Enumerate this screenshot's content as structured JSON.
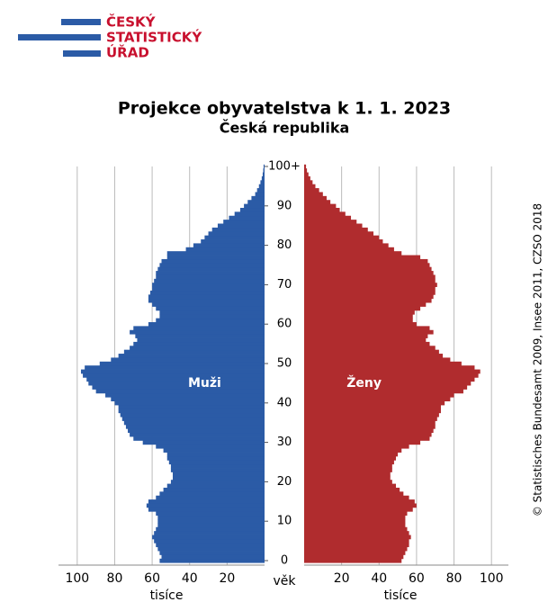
{
  "logo": {
    "lines": [
      "ČESKÝ",
      "STATISTICKÝ",
      "ÚŘAD"
    ]
  },
  "chart_data": {
    "type": "pyramid",
    "title": "Projekce obyvatelstva k 1. 1. 2023",
    "subtitle": "Česká republika",
    "x_label": "tisíce",
    "y_label": "věk",
    "note": "© Statistisches Bundesamt 2009, Insee 2011, CZSO 2018",
    "ylim": [
      0,
      100
    ],
    "yticks": [
      0,
      10,
      20,
      30,
      40,
      50,
      60,
      70,
      80,
      90,
      {
        "value": 100,
        "label": "100+"
      }
    ],
    "xlim": [
      0,
      110
    ],
    "xticks": [
      20,
      40,
      60,
      80,
      100
    ],
    "grid": true,
    "series": [
      {
        "name": "Muži",
        "side": "left",
        "color": "#2b5ba6",
        "values": [
          56,
          55,
          56,
          57,
          58,
          59,
          60,
          59,
          58,
          57,
          57,
          57,
          58,
          62,
          63,
          62,
          58,
          56,
          54,
          52,
          50,
          49,
          49,
          50,
          50,
          51,
          52,
          52,
          54,
          58,
          65,
          70,
          72,
          73,
          74,
          75,
          76,
          77,
          78,
          78,
          80,
          82,
          85,
          90,
          92,
          94,
          95,
          97,
          98,
          96,
          88,
          82,
          78,
          75,
          72,
          70,
          68,
          69,
          72,
          70,
          62,
          58,
          56,
          56,
          58,
          60,
          62,
          62,
          61,
          60,
          60,
          59,
          58,
          58,
          57,
          56,
          55,
          52,
          52,
          42,
          38,
          34,
          32,
          30,
          28,
          25,
          22,
          19,
          16,
          13,
          11,
          9,
          7,
          5,
          4,
          3,
          2.2,
          1.5,
          1,
          0.7,
          0.5
        ]
      },
      {
        "name": "Ženy",
        "side": "right",
        "color": "#b02c2e",
        "values": [
          52,
          53,
          54,
          55,
          56,
          56,
          57,
          56,
          55,
          54,
          54,
          54,
          55,
          58,
          60,
          59,
          56,
          53,
          51,
          49,
          47,
          46,
          46,
          47,
          47,
          48,
          49,
          50,
          52,
          56,
          62,
          67,
          68,
          69,
          70,
          70,
          71,
          72,
          73,
          73,
          75,
          78,
          80,
          85,
          87,
          89,
          91,
          93,
          94,
          91,
          84,
          78,
          74,
          72,
          70,
          67,
          65,
          66,
          69,
          67,
          60,
          58,
          58,
          59,
          62,
          65,
          68,
          69,
          70,
          70,
          71,
          70,
          70,
          69,
          68,
          67,
          66,
          62,
          52,
          48,
          45,
          42,
          40,
          37,
          34,
          31,
          28,
          25,
          22,
          19,
          17,
          14,
          12,
          10,
          8,
          6,
          4.5,
          3.3,
          2.3,
          1.5,
          1
        ]
      }
    ]
  }
}
